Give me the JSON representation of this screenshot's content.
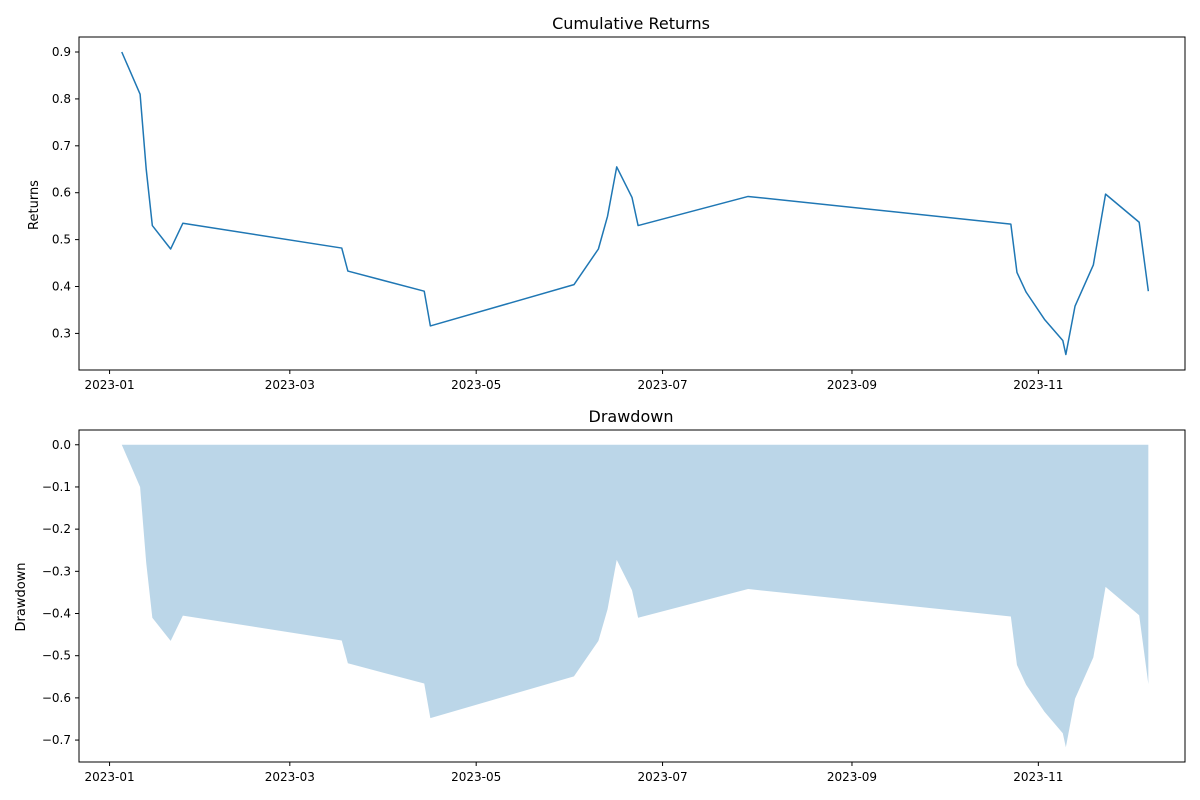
{
  "chart_data": [
    {
      "type": "line",
      "title": "Cumulative Returns",
      "xlabel": "",
      "ylabel": "Returns",
      "grid": false,
      "color": "#1f77b4",
      "xlim": [
        "2022-12-22",
        "2023-12-19"
      ],
      "ylim": [
        0.222,
        0.932
      ],
      "x_ticks": [
        "2023-01",
        "2023-03",
        "2023-05",
        "2023-07",
        "2023-09",
        "2023-11"
      ],
      "y_ticks": [
        0.3,
        0.4,
        0.5,
        0.6,
        0.7,
        0.8,
        0.9
      ],
      "y_tick_labels": [
        "0.3",
        "0.4",
        "0.5",
        "0.6",
        "0.7",
        "0.8",
        "0.9"
      ],
      "series": [
        {
          "x": [
            "2023-01-05",
            "2023-01-11",
            "2023-01-13",
            "2023-01-15",
            "2023-01-21",
            "2023-01-25",
            "2023-03-18",
            "2023-03-20",
            "2023-04-14",
            "2023-04-16",
            "2023-06-02",
            "2023-06-10",
            "2023-06-13",
            "2023-06-16",
            "2023-06-21",
            "2023-06-23",
            "2023-07-29",
            "2023-10-23",
            "2023-10-25",
            "2023-10-28",
            "2023-11-03",
            "2023-11-09",
            "2023-11-10",
            "2023-11-13",
            "2023-11-19",
            "2023-11-23",
            "2023-12-04",
            "2023-12-07"
          ],
          "values": [
            0.9,
            0.81,
            0.65,
            0.53,
            0.48,
            0.535,
            0.482,
            0.433,
            0.39,
            0.316,
            0.404,
            0.48,
            0.55,
            0.655,
            0.59,
            0.53,
            0.592,
            0.533,
            0.43,
            0.388,
            0.33,
            0.285,
            0.255,
            0.358,
            0.446,
            0.597,
            0.537,
            0.39
          ]
        }
      ]
    },
    {
      "type": "area",
      "title": "Drawdown",
      "xlabel": "",
      "ylabel": "Drawdown",
      "grid": false,
      "color": "#1f77b4",
      "fill_opacity": 0.3,
      "xlim": [
        "2022-12-22",
        "2023-12-19"
      ],
      "ylim": [
        -0.752,
        0.035
      ],
      "x_ticks": [
        "2023-01",
        "2023-03",
        "2023-05",
        "2023-07",
        "2023-09",
        "2023-11"
      ],
      "y_ticks": [
        0.0,
        -0.1,
        -0.2,
        -0.3,
        -0.4,
        -0.5,
        -0.6,
        -0.7
      ],
      "y_tick_labels": [
        "0.0",
        "−0.1",
        "−0.2",
        "−0.3",
        "−0.4",
        "−0.5",
        "−0.6",
        "−0.7"
      ],
      "series": [
        {
          "x": [
            "2023-01-05",
            "2023-01-11",
            "2023-01-13",
            "2023-01-15",
            "2023-01-21",
            "2023-01-25",
            "2023-03-18",
            "2023-03-20",
            "2023-04-14",
            "2023-04-16",
            "2023-06-02",
            "2023-06-10",
            "2023-06-13",
            "2023-06-16",
            "2023-06-21",
            "2023-06-23",
            "2023-07-29",
            "2023-10-23",
            "2023-10-25",
            "2023-10-28",
            "2023-11-03",
            "2023-11-09",
            "2023-11-10",
            "2023-11-13",
            "2023-11-19",
            "2023-11-23",
            "2023-12-04",
            "2023-12-07"
          ],
          "values": [
            0.0,
            -0.1,
            -0.28,
            -0.41,
            -0.465,
            -0.405,
            -0.464,
            -0.518,
            -0.566,
            -0.648,
            -0.549,
            -0.465,
            -0.39,
            -0.273,
            -0.345,
            -0.41,
            -0.342,
            -0.407,
            -0.522,
            -0.569,
            -0.633,
            -0.684,
            -0.717,
            -0.602,
            -0.504,
            -0.337,
            -0.404,
            -0.567
          ]
        }
      ]
    }
  ]
}
